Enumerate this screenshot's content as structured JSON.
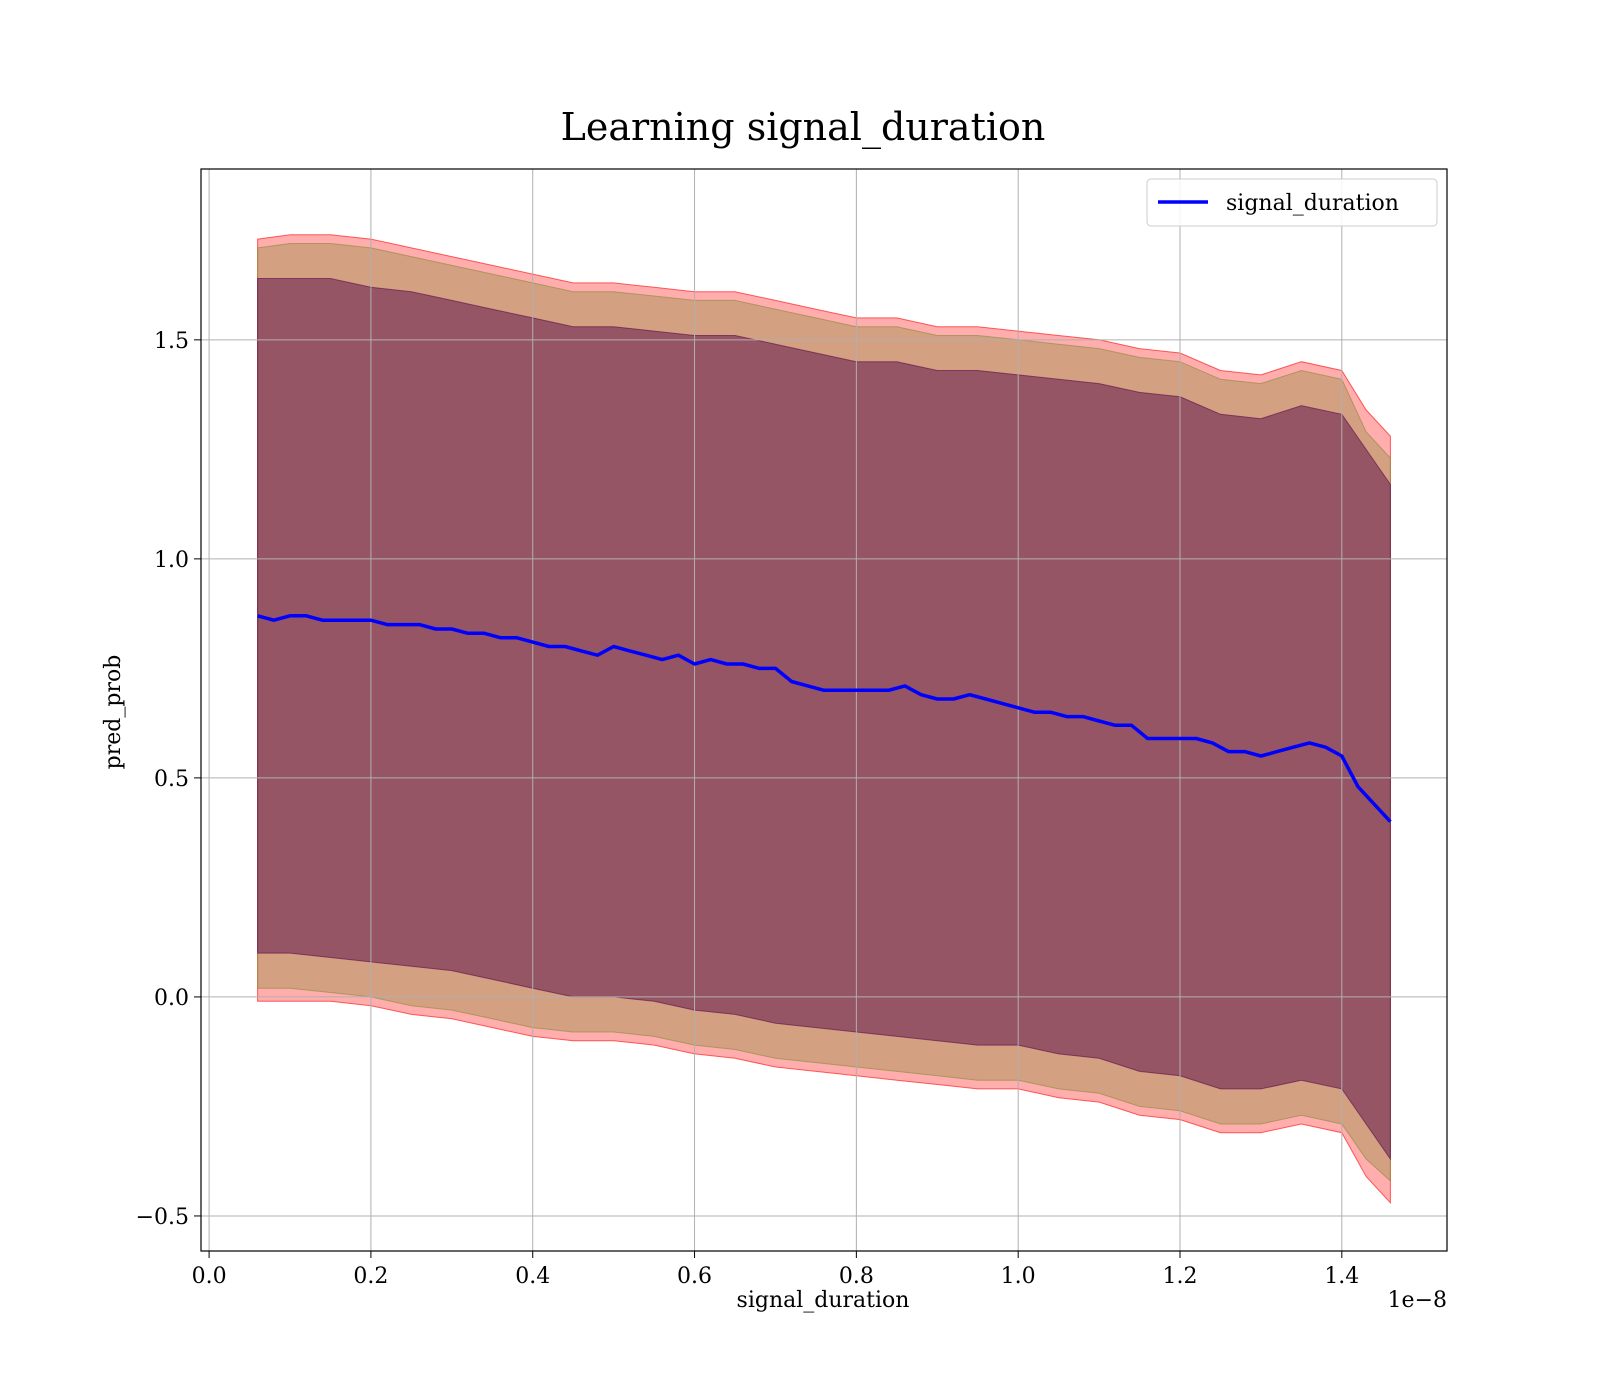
{
  "chart_data": {
    "type": "line",
    "title": "Learning signal_duration",
    "xlabel": "signal_duration",
    "ylabel": "pred_prob",
    "x_offset_text": "1e−8",
    "xlim": [
      -0.01,
      1.53
    ],
    "ylim": [
      -0.58,
      1.89
    ],
    "x_scale_note": "x values in units of 1e-8",
    "xticks": [
      0.0,
      0.2,
      0.4,
      0.6,
      0.8,
      1.0,
      1.2,
      1.4
    ],
    "xtick_labels": [
      "0.0",
      "0.2",
      "0.4",
      "0.6",
      "0.8",
      "1.0",
      "1.2",
      "1.4"
    ],
    "yticks": [
      -0.5,
      0.0,
      0.5,
      1.0,
      1.5
    ],
    "ytick_labels": [
      "−0.5",
      "0.0",
      "0.5",
      "1.0",
      "1.5"
    ],
    "grid": true,
    "legend_position": "top-right",
    "series": [
      {
        "name": "signal_duration",
        "color": "#0000ff",
        "x": [
          0.06,
          0.08,
          0.1,
          0.12,
          0.14,
          0.16,
          0.18,
          0.2,
          0.22,
          0.24,
          0.26,
          0.28,
          0.3,
          0.32,
          0.34,
          0.36,
          0.38,
          0.4,
          0.42,
          0.44,
          0.46,
          0.48,
          0.5,
          0.52,
          0.54,
          0.56,
          0.58,
          0.6,
          0.62,
          0.64,
          0.66,
          0.68,
          0.7,
          0.72,
          0.74,
          0.76,
          0.78,
          0.8,
          0.82,
          0.84,
          0.86,
          0.88,
          0.9,
          0.92,
          0.94,
          0.96,
          0.98,
          1.0,
          1.02,
          1.04,
          1.06,
          1.08,
          1.1,
          1.12,
          1.14,
          1.16,
          1.18,
          1.2,
          1.22,
          1.24,
          1.26,
          1.28,
          1.3,
          1.32,
          1.34,
          1.36,
          1.38,
          1.4,
          1.42,
          1.44,
          1.46
        ],
        "values": [
          0.87,
          0.86,
          0.87,
          0.87,
          0.86,
          0.86,
          0.86,
          0.86,
          0.85,
          0.85,
          0.85,
          0.84,
          0.84,
          0.83,
          0.83,
          0.82,
          0.82,
          0.81,
          0.8,
          0.8,
          0.79,
          0.78,
          0.8,
          0.79,
          0.78,
          0.77,
          0.78,
          0.76,
          0.77,
          0.76,
          0.76,
          0.75,
          0.75,
          0.72,
          0.71,
          0.7,
          0.7,
          0.7,
          0.7,
          0.7,
          0.71,
          0.69,
          0.68,
          0.68,
          0.69,
          0.68,
          0.67,
          0.66,
          0.65,
          0.65,
          0.64,
          0.64,
          0.63,
          0.62,
          0.62,
          0.59,
          0.59,
          0.59,
          0.59,
          0.58,
          0.56,
          0.56,
          0.55,
          0.56,
          0.57,
          0.58,
          0.57,
          0.55,
          0.48,
          0.44,
          0.4
        ]
      }
    ],
    "bands": [
      {
        "role": "outer",
        "fill": "#ff0000",
        "opacity": 0.32,
        "x": [
          0.06,
          0.1,
          0.15,
          0.2,
          0.25,
          0.3,
          0.35,
          0.4,
          0.45,
          0.5,
          0.55,
          0.6,
          0.65,
          0.7,
          0.75,
          0.8,
          0.85,
          0.9,
          0.95,
          1.0,
          1.05,
          1.1,
          1.15,
          1.2,
          1.25,
          1.3,
          1.35,
          1.4,
          1.43,
          1.46
        ],
        "upper": [
          1.73,
          1.74,
          1.74,
          1.73,
          1.71,
          1.69,
          1.67,
          1.65,
          1.63,
          1.63,
          1.62,
          1.61,
          1.61,
          1.59,
          1.57,
          1.55,
          1.55,
          1.53,
          1.53,
          1.52,
          1.51,
          1.5,
          1.48,
          1.47,
          1.43,
          1.42,
          1.45,
          1.43,
          1.34,
          1.28
        ],
        "lower": [
          -0.01,
          -0.01,
          -0.01,
          -0.02,
          -0.04,
          -0.05,
          -0.07,
          -0.09,
          -0.1,
          -0.1,
          -0.11,
          -0.13,
          -0.14,
          -0.16,
          -0.17,
          -0.18,
          -0.19,
          -0.2,
          -0.21,
          -0.21,
          -0.23,
          -0.24,
          -0.27,
          -0.28,
          -0.31,
          -0.31,
          -0.29,
          -0.31,
          -0.41,
          -0.47
        ]
      },
      {
        "role": "middle",
        "fill": "#8b8b3a",
        "opacity": 0.38,
        "x": [
          0.06,
          0.1,
          0.15,
          0.2,
          0.25,
          0.3,
          0.35,
          0.4,
          0.45,
          0.5,
          0.55,
          0.6,
          0.65,
          0.7,
          0.75,
          0.8,
          0.85,
          0.9,
          0.95,
          1.0,
          1.05,
          1.1,
          1.15,
          1.2,
          1.25,
          1.3,
          1.35,
          1.4,
          1.43,
          1.46
        ],
        "upper": [
          1.71,
          1.72,
          1.72,
          1.71,
          1.69,
          1.67,
          1.65,
          1.63,
          1.61,
          1.61,
          1.6,
          1.59,
          1.59,
          1.57,
          1.55,
          1.53,
          1.53,
          1.51,
          1.51,
          1.5,
          1.49,
          1.48,
          1.46,
          1.45,
          1.41,
          1.4,
          1.43,
          1.41,
          1.29,
          1.23
        ],
        "lower": [
          0.02,
          0.02,
          0.01,
          0.0,
          -0.02,
          -0.03,
          -0.05,
          -0.07,
          -0.08,
          -0.08,
          -0.09,
          -0.11,
          -0.12,
          -0.14,
          -0.15,
          -0.16,
          -0.17,
          -0.18,
          -0.19,
          -0.19,
          -0.21,
          -0.22,
          -0.25,
          -0.26,
          -0.29,
          -0.29,
          -0.27,
          -0.29,
          -0.37,
          -0.42
        ]
      },
      {
        "role": "inner",
        "fill": "#5a0a4a",
        "opacity": 0.5,
        "x": [
          0.06,
          0.1,
          0.15,
          0.2,
          0.25,
          0.3,
          0.35,
          0.4,
          0.45,
          0.5,
          0.55,
          0.6,
          0.65,
          0.7,
          0.75,
          0.8,
          0.85,
          0.9,
          0.95,
          1.0,
          1.05,
          1.1,
          1.15,
          1.2,
          1.25,
          1.3,
          1.35,
          1.4,
          1.43,
          1.46
        ],
        "upper": [
          1.64,
          1.64,
          1.64,
          1.62,
          1.61,
          1.59,
          1.57,
          1.55,
          1.53,
          1.53,
          1.52,
          1.51,
          1.51,
          1.49,
          1.47,
          1.45,
          1.45,
          1.43,
          1.43,
          1.42,
          1.41,
          1.4,
          1.38,
          1.37,
          1.33,
          1.32,
          1.35,
          1.33,
          1.25,
          1.17
        ],
        "lower": [
          0.1,
          0.1,
          0.09,
          0.08,
          0.07,
          0.06,
          0.04,
          0.02,
          0.0,
          0.0,
          -0.01,
          -0.03,
          -0.04,
          -0.06,
          -0.07,
          -0.08,
          -0.09,
          -0.1,
          -0.11,
          -0.11,
          -0.13,
          -0.14,
          -0.17,
          -0.18,
          -0.21,
          -0.21,
          -0.19,
          -0.21,
          -0.29,
          -0.37
        ]
      }
    ]
  }
}
